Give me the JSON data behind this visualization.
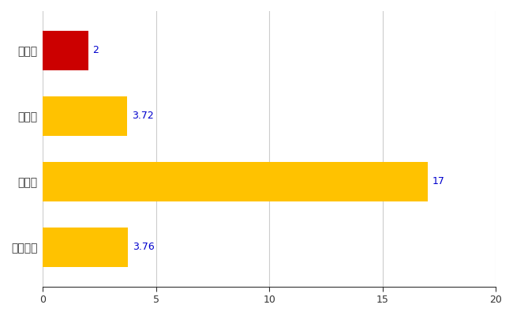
{
  "categories": [
    "全国平均",
    "県最大",
    "県平均",
    "紀北町"
  ],
  "values": [
    3.76,
    17,
    3.72,
    2
  ],
  "labels": [
    "3.76",
    "17",
    "3.72",
    "2"
  ],
  "bar_colors": [
    "#FFC200",
    "#FFC200",
    "#FFC200",
    "#CC0000"
  ],
  "xlim": [
    0,
    20
  ],
  "xticks": [
    0,
    5,
    10,
    15,
    20
  ],
  "background_color": "#ffffff",
  "grid_color": "#cccccc",
  "label_color": "#0000cd",
  "tick_color": "#333333",
  "bar_height": 0.6,
  "figsize": [
    6.5,
    4.0
  ],
  "dpi": 100
}
